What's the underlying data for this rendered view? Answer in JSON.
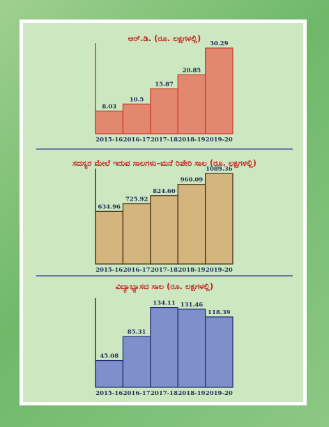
{
  "chart_data": [
    {
      "type": "bar",
      "title": "ಆರ್.ಡಿ. (ರೂ. ಲಕ್ಷಗಳಲ್ಲಿ)",
      "categories": [
        "2015-16",
        "2016-17",
        "2017-18",
        "2018-19",
        "2019-20"
      ],
      "values": [
        8.03,
        10.5,
        15.87,
        20.85,
        30.29
      ],
      "value_labels": [
        "8.03",
        "10.5",
        "15.87",
        "20.85",
        "30.29"
      ],
      "ylim": [
        0,
        32
      ],
      "fill": "#e38870",
      "stroke": "#c83a28",
      "legend": "none"
    },
    {
      "type": "bar",
      "title": "ಸದಸ್ಯರ ಮೇಲೆ ಇರುವ ಸಾಲಗಳು–ಮನೆ ರಿಪೇರಿ ಸಾಲ (ರೂ. ಲಕ್ಷಗಳಲ್ಲಿ)",
      "categories": [
        "2015-16",
        "2016-17",
        "2017-18",
        "2018-19",
        "2019-20"
      ],
      "values": [
        634.96,
        725.92,
        824.6,
        960.09,
        1089.36
      ],
      "value_labels": [
        "634.96",
        "725.92",
        "824.60",
        "960.09",
        "1089.36"
      ],
      "ylim": [
        0,
        1150
      ],
      "fill": "#d4b57e",
      "stroke": "#3a2a14",
      "legend": "none"
    },
    {
      "type": "bar",
      "title": "ವಿದ್ಯಾಭ್ಯಾಸದ ಸಾಲ (ರೂ. ಲಕ್ಷಗಳಲ್ಲಿ)",
      "categories": [
        "2015-16",
        "2016-17",
        "2017-18",
        "2018-19",
        "2019-20"
      ],
      "values": [
        45.08,
        85.31,
        134.11,
        131.46,
        118.39
      ],
      "value_labels": [
        "45.08",
        "85.31",
        "134.11",
        "131.46",
        "118.39"
      ],
      "ylim": [
        0,
        150
      ],
      "fill": "#7f8fcb",
      "stroke": "#1e2a6e",
      "legend": "none"
    }
  ],
  "colors": {
    "page_background": "#8cc884",
    "panel_background": "#cde8c0",
    "frame": "#ffffff",
    "title_text": "#c0221e",
    "label_text": "#1d2b5a",
    "divider": "#2f3d8c"
  }
}
